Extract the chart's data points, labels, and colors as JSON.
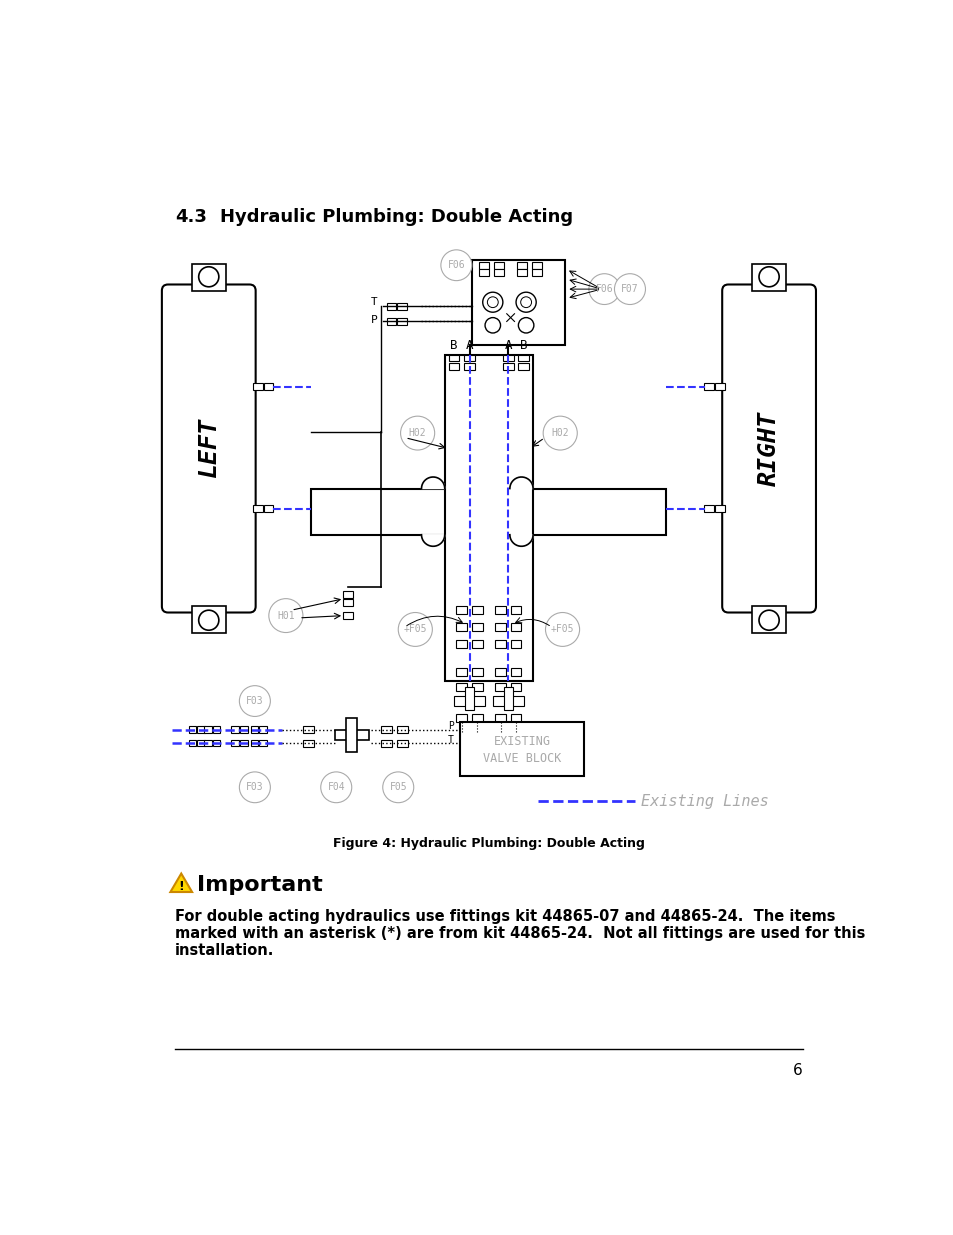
{
  "title_num": "4.3",
  "title_text": "Hydraulic Plumbing: Double Acting",
  "figure_caption": "Figure 4: Hydraulic Plumbing: Double Acting",
  "important_title": "Important",
  "important_text_line1": "For double acting hydraulics use fittings kit 44865-07 and 44865-24.  The items",
  "important_text_line2": "marked with an asterisk (*) are from kit 44865-24.  Not all fittings are used for this",
  "important_text_line3": "installation.",
  "page_number": "6",
  "existing_lines_label": "Existing Lines",
  "background": "#ffffff",
  "blue_color": "#3333ff",
  "black_color": "#000000",
  "gray_color": "#aaaaaa",
  "dark_gray": "#666666"
}
